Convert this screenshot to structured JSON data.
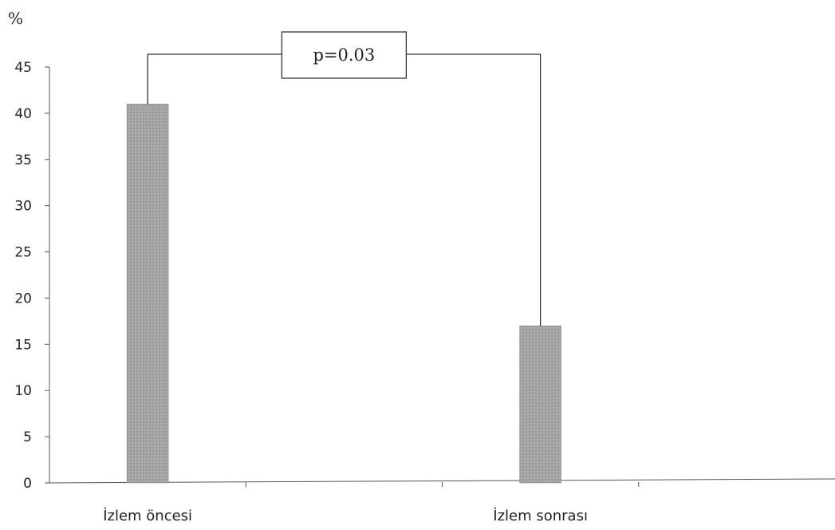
{
  "chart_data": {
    "type": "bar",
    "categories": [
      "İzlem öncesi",
      "",
      "İzlem sonrası",
      ""
    ],
    "values": [
      41,
      null,
      17,
      null
    ],
    "title": "",
    "xlabel": "",
    "ylabel": "%",
    "ylim": [
      0,
      45
    ],
    "yticks": [
      0,
      5,
      10,
      15,
      20,
      25,
      30,
      35,
      40,
      45
    ],
    "grid": false,
    "legend": "none",
    "bar_color": "#a8a8a8",
    "annotation": {
      "text": "p=0.03",
      "type": "significance-bracket",
      "from_category": 0,
      "to_category": 2
    }
  }
}
